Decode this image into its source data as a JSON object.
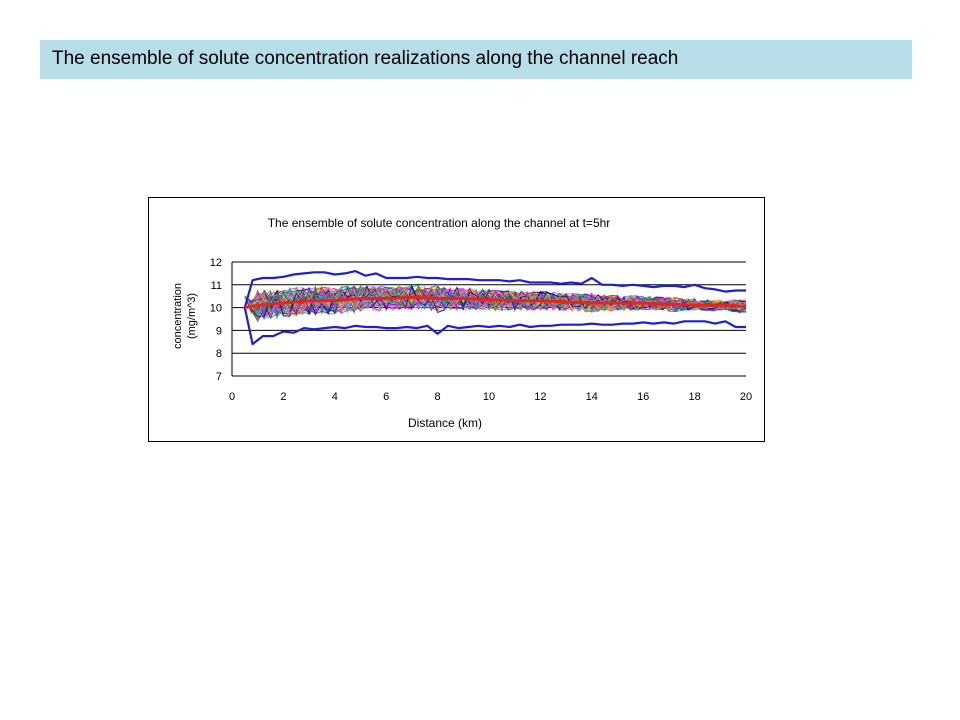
{
  "slide": {
    "title": "The ensemble of solute concentration realizations along the channel reach"
  },
  "chart_data": {
    "type": "line",
    "title": "The ensemble of solute concentration along the channel at t=5hr",
    "xlabel": "Distance (km)",
    "ylabel_line1": "concentration",
    "ylabel_line2": "(mg/m^3)",
    "xlim": [
      0,
      20
    ],
    "ylim": [
      7,
      12
    ],
    "x_ticks": [
      "0",
      "2",
      "4",
      "6",
      "8",
      "10",
      "12",
      "14",
      "16",
      "18",
      "20"
    ],
    "y_ticks": [
      "12",
      "11",
      "10",
      "9",
      "8",
      "7"
    ],
    "grid": "horizontal",
    "colors": {
      "mean": "#e3261c",
      "bounds": "#1f1fd0",
      "realizations": [
        "#1a1aff",
        "#ff00ff",
        "#ffd400",
        "#00c8ff",
        "#8a2be2",
        "#b22222",
        "#008080",
        "#ff8c00",
        "#228b22",
        "#000080",
        "#ff69b4",
        "#999999"
      ]
    },
    "series": [
      {
        "role": "upper_bound",
        "x": [
          0.5,
          0.8,
          1.2,
          1.6,
          2.0,
          2.4,
          2.8,
          3.2,
          3.6,
          4.0,
          4.4,
          4.8,
          5.2,
          5.6,
          6.0,
          6.4,
          6.8,
          7.2,
          7.6,
          8.0,
          8.4,
          8.8,
          9.2,
          9.6,
          10.0,
          10.4,
          10.8,
          11.2,
          11.6,
          12.0,
          12.4,
          12.8,
          13.2,
          13.6,
          14.0,
          14.4,
          14.8,
          15.2,
          15.6,
          16.0,
          16.4,
          16.8,
          17.2,
          17.6,
          18.0,
          18.4,
          18.8,
          19.2,
          19.6,
          20.0
        ],
        "y": [
          10.0,
          11.2,
          11.3,
          11.3,
          11.35,
          11.45,
          11.5,
          11.55,
          11.55,
          11.45,
          11.5,
          11.6,
          11.4,
          11.5,
          11.3,
          11.3,
          11.3,
          11.35,
          11.3,
          11.3,
          11.25,
          11.25,
          11.25,
          11.2,
          11.2,
          11.2,
          11.15,
          11.2,
          11.1,
          11.1,
          11.1,
          11.05,
          11.1,
          11.05,
          11.3,
          11.0,
          11.0,
          10.95,
          11.0,
          10.95,
          10.9,
          10.95,
          10.95,
          10.9,
          11.0,
          10.85,
          10.8,
          10.7,
          10.75,
          10.75
        ]
      },
      {
        "role": "lower_bound",
        "x": [
          0.5,
          0.8,
          1.2,
          1.6,
          2.0,
          2.4,
          2.8,
          3.2,
          3.6,
          4.0,
          4.4,
          4.8,
          5.2,
          5.6,
          6.0,
          6.4,
          6.8,
          7.2,
          7.6,
          8.0,
          8.4,
          8.8,
          9.2,
          9.6,
          10.0,
          10.4,
          10.8,
          11.2,
          11.6,
          12.0,
          12.4,
          12.8,
          13.2,
          13.6,
          14.0,
          14.4,
          14.8,
          15.2,
          15.6,
          16.0,
          16.4,
          16.8,
          17.2,
          17.6,
          18.0,
          18.4,
          18.8,
          19.2,
          19.6,
          20.0
        ],
        "y": [
          10.0,
          8.4,
          8.75,
          8.75,
          8.95,
          8.9,
          9.1,
          9.05,
          9.1,
          9.15,
          9.1,
          9.2,
          9.15,
          9.15,
          9.1,
          9.1,
          9.15,
          9.1,
          9.2,
          8.85,
          9.2,
          9.1,
          9.15,
          9.2,
          9.15,
          9.2,
          9.15,
          9.25,
          9.15,
          9.2,
          9.2,
          9.25,
          9.25,
          9.25,
          9.3,
          9.25,
          9.25,
          9.3,
          9.3,
          9.35,
          9.3,
          9.35,
          9.3,
          9.4,
          9.4,
          9.4,
          9.3,
          9.4,
          9.15,
          9.15
        ]
      },
      {
        "role": "mean",
        "x": [
          0.5,
          1.0,
          2.0,
          3.0,
          4.0,
          5.0,
          6.0,
          7.0,
          8.0,
          9.0,
          10.0,
          11.0,
          12.0,
          13.0,
          14.0,
          15.0,
          16.0,
          17.0,
          18.0,
          19.0,
          20.0
        ],
        "y": [
          10.0,
          10.1,
          10.2,
          10.3,
          10.3,
          10.4,
          10.4,
          10.45,
          10.4,
          10.4,
          10.35,
          10.3,
          10.3,
          10.25,
          10.2,
          10.2,
          10.2,
          10.15,
          10.1,
          10.1,
          10.05
        ]
      }
    ]
  }
}
